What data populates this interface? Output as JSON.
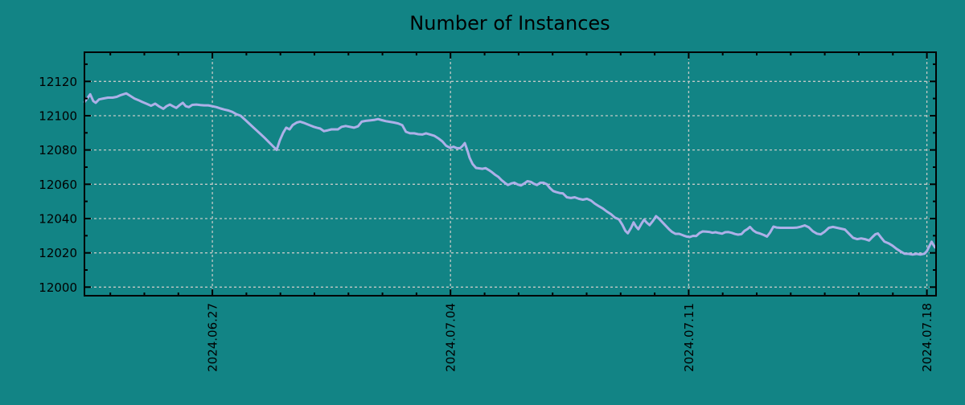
{
  "chart_data": {
    "type": "line",
    "title": "Number of Instances",
    "x_unit": "days relative to 2024-06-27",
    "x_range": [
      -3.76,
      21.27
    ],
    "y_range": [
      11995,
      12137
    ],
    "x_ticks": [
      {
        "t": 0,
        "label": "2024.06.27"
      },
      {
        "t": 7,
        "label": "2024.07.04"
      },
      {
        "t": 14,
        "label": "2024.07.11"
      },
      {
        "t": 21,
        "label": "2024.07.18"
      }
    ],
    "x_minor_ticks": [
      -3,
      -2,
      -1,
      1,
      2,
      3,
      4,
      5,
      6,
      8,
      9,
      10,
      11,
      12,
      13,
      15,
      16,
      17,
      18,
      19,
      20
    ],
    "y_ticks": [
      12000,
      12020,
      12040,
      12060,
      12080,
      12100,
      12120
    ],
    "y_minor_ticks": [
      12010,
      12030,
      12050,
      12070,
      12090,
      12110,
      12130
    ],
    "grid": {
      "on": true,
      "style": "dashed"
    },
    "legend": "none",
    "colors": {
      "background": "#128485",
      "line": "#adb0e8",
      "grid": "#c2c9c6",
      "axis": "#000000",
      "text": "#000000"
    },
    "line_width": 3,
    "points": [
      [
        -3.76,
        12108
      ],
      [
        -3.66,
        12110.5
      ],
      [
        -3.59,
        12112.5
      ],
      [
        -3.5,
        12108.5
      ],
      [
        -3.43,
        12107.5
      ],
      [
        -3.33,
        12109.5
      ],
      [
        -3.21,
        12110
      ],
      [
        -3.07,
        12110.5
      ],
      [
        -2.93,
        12110.5
      ],
      [
        -2.81,
        12111
      ],
      [
        -2.69,
        12112
      ],
      [
        -2.53,
        12113
      ],
      [
        -2.41,
        12111.5
      ],
      [
        -2.29,
        12110
      ],
      [
        -2.17,
        12109
      ],
      [
        -2.06,
        12108
      ],
      [
        -1.94,
        12107
      ],
      [
        -1.8,
        12105.8
      ],
      [
        -1.68,
        12107
      ],
      [
        -1.56,
        12105.3
      ],
      [
        -1.44,
        12104
      ],
      [
        -1.35,
        12105.5
      ],
      [
        -1.25,
        12106.5
      ],
      [
        -1.16,
        12105.5
      ],
      [
        -1.06,
        12104.5
      ],
      [
        -0.97,
        12106
      ],
      [
        -0.87,
        12107.5
      ],
      [
        -0.78,
        12105.5
      ],
      [
        -0.69,
        12105
      ],
      [
        -0.59,
        12106.3
      ],
      [
        -0.47,
        12106.5
      ],
      [
        -0.35,
        12106.2
      ],
      [
        -0.24,
        12106
      ],
      [
        -0.12,
        12106
      ],
      [
        0,
        12105.5
      ],
      [
        0.12,
        12105
      ],
      [
        0.24,
        12104.2
      ],
      [
        0.35,
        12103.6
      ],
      [
        0.47,
        12103
      ],
      [
        0.59,
        12102.2
      ],
      [
        0.71,
        12100.8
      ],
      [
        0.83,
        12100
      ],
      [
        0.94,
        12098
      ],
      [
        1.06,
        12095.8
      ],
      [
        1.18,
        12093.6
      ],
      [
        1.3,
        12091.4
      ],
      [
        1.42,
        12089.2
      ],
      [
        1.54,
        12087
      ],
      [
        1.65,
        12084.8
      ],
      [
        1.77,
        12082.4
      ],
      [
        1.89,
        12080
      ],
      [
        1.98,
        12085.5
      ],
      [
        2.08,
        12090
      ],
      [
        2.17,
        12093
      ],
      [
        2.27,
        12092
      ],
      [
        2.36,
        12094.5
      ],
      [
        2.48,
        12096
      ],
      [
        2.58,
        12096.5
      ],
      [
        2.69,
        12095.8
      ],
      [
        2.79,
        12095
      ],
      [
        2.88,
        12094.3
      ],
      [
        2.98,
        12093.5
      ],
      [
        3.07,
        12093
      ],
      [
        3.17,
        12092.5
      ],
      [
        3.28,
        12091
      ],
      [
        3.4,
        12091.5
      ],
      [
        3.5,
        12092
      ],
      [
        3.59,
        12092
      ],
      [
        3.69,
        12092
      ],
      [
        3.8,
        12093.5
      ],
      [
        3.92,
        12094
      ],
      [
        4.04,
        12093.5
      ],
      [
        4.16,
        12093
      ],
      [
        4.28,
        12093.8
      ],
      [
        4.39,
        12096.5
      ],
      [
        4.51,
        12097
      ],
      [
        4.63,
        12097.2
      ],
      [
        4.75,
        12097.5
      ],
      [
        4.87,
        12098
      ],
      [
        4.98,
        12097.4
      ],
      [
        5.1,
        12096.8
      ],
      [
        5.22,
        12096.4
      ],
      [
        5.34,
        12096
      ],
      [
        5.46,
        12095.5
      ],
      [
        5.58,
        12094.5
      ],
      [
        5.69,
        12090.6
      ],
      [
        5.81,
        12089.7
      ],
      [
        5.93,
        12089.7
      ],
      [
        6.05,
        12089.2
      ],
      [
        6.17,
        12089
      ],
      [
        6.28,
        12089.7
      ],
      [
        6.4,
        12089
      ],
      [
        6.52,
        12088.3
      ],
      [
        6.64,
        12086.8
      ],
      [
        6.76,
        12085
      ],
      [
        6.87,
        12082.5
      ],
      [
        6.99,
        12081.2
      ],
      [
        7.09,
        12081.9
      ],
      [
        7.18,
        12081.1
      ],
      [
        7.28,
        12081
      ],
      [
        7.35,
        12082.3
      ],
      [
        7.42,
        12084
      ],
      [
        7.49,
        12080
      ],
      [
        7.56,
        12075.5
      ],
      [
        7.65,
        12071.8
      ],
      [
        7.75,
        12069.5
      ],
      [
        7.84,
        12069.3
      ],
      [
        7.94,
        12069
      ],
      [
        8.03,
        12069.4
      ],
      [
        8.13,
        12068.2
      ],
      [
        8.22,
        12067
      ],
      [
        8.32,
        12065.4
      ],
      [
        8.41,
        12064.2
      ],
      [
        8.5,
        12062.4
      ],
      [
        8.6,
        12060.8
      ],
      [
        8.69,
        12059.6
      ],
      [
        8.79,
        12060.5
      ],
      [
        8.88,
        12060.9
      ],
      [
        8.98,
        12059.8
      ],
      [
        9.07,
        12059.3
      ],
      [
        9.17,
        12060.5
      ],
      [
        9.26,
        12061.8
      ],
      [
        9.36,
        12061.4
      ],
      [
        9.45,
        12060.3
      ],
      [
        9.54,
        12059.6
      ],
      [
        9.64,
        12060.9
      ],
      [
        9.73,
        12060.9
      ],
      [
        9.83,
        12060
      ],
      [
        9.92,
        12057.8
      ],
      [
        10.02,
        12056
      ],
      [
        10.11,
        12055.4
      ],
      [
        10.21,
        12054.9
      ],
      [
        10.3,
        12054.7
      ],
      [
        10.42,
        12052.4
      ],
      [
        10.54,
        12052
      ],
      [
        10.65,
        12052.4
      ],
      [
        10.77,
        12051.5
      ],
      [
        10.89,
        12051
      ],
      [
        11.01,
        12051.5
      ],
      [
        11.13,
        12050.5
      ],
      [
        11.24,
        12048.7
      ],
      [
        11.36,
        12047.2
      ],
      [
        11.48,
        12045.8
      ],
      [
        11.6,
        12044
      ],
      [
        11.72,
        12042.5
      ],
      [
        11.83,
        12040.6
      ],
      [
        11.95,
        12039.5
      ],
      [
        12.05,
        12036.4
      ],
      [
        12.14,
        12032.8
      ],
      [
        12.21,
        12031.4
      ],
      [
        12.31,
        12034.7
      ],
      [
        12.38,
        12037.8
      ],
      [
        12.45,
        12035.4
      ],
      [
        12.52,
        12033.8
      ],
      [
        12.61,
        12036.9
      ],
      [
        12.69,
        12039.4
      ],
      [
        12.76,
        12037.8
      ],
      [
        12.85,
        12036.2
      ],
      [
        12.95,
        12038.7
      ],
      [
        13.04,
        12041.4
      ],
      [
        13.13,
        12039.9
      ],
      [
        13.23,
        12037.8
      ],
      [
        13.32,
        12035.9
      ],
      [
        13.42,
        12033.8
      ],
      [
        13.51,
        12032.2
      ],
      [
        13.61,
        12031.1
      ],
      [
        13.72,
        12031.1
      ],
      [
        13.84,
        12030.2
      ],
      [
        13.94,
        12029.5
      ],
      [
        14.03,
        12029.2
      ],
      [
        14.13,
        12029.9
      ],
      [
        14.22,
        12029.8
      ],
      [
        14.32,
        12031.6
      ],
      [
        14.41,
        12032.5
      ],
      [
        14.51,
        12032.4
      ],
      [
        14.6,
        12032.2
      ],
      [
        14.7,
        12031.7
      ],
      [
        14.79,
        12032
      ],
      [
        14.88,
        12031.6
      ],
      [
        14.98,
        12031.2
      ],
      [
        15.07,
        12032
      ],
      [
        15.17,
        12032.1
      ],
      [
        15.26,
        12031.7
      ],
      [
        15.36,
        12031
      ],
      [
        15.45,
        12030.6
      ],
      [
        15.55,
        12030.9
      ],
      [
        15.64,
        12032.8
      ],
      [
        15.73,
        12033.9
      ],
      [
        15.8,
        12035.1
      ],
      [
        15.9,
        12033
      ],
      [
        15.99,
        12031.9
      ],
      [
        16.09,
        12031.3
      ],
      [
        16.21,
        12030.4
      ],
      [
        16.3,
        12029.5
      ],
      [
        16.39,
        12031.8
      ],
      [
        16.49,
        12035.3
      ],
      [
        16.58,
        12034.8
      ],
      [
        16.7,
        12034.6
      ],
      [
        16.82,
        12034.6
      ],
      [
        16.94,
        12034.6
      ],
      [
        17.06,
        12034.6
      ],
      [
        17.17,
        12034.7
      ],
      [
        17.29,
        12035.2
      ],
      [
        17.41,
        12036
      ],
      [
        17.53,
        12034.9
      ],
      [
        17.65,
        12032.6
      ],
      [
        17.77,
        12031.2
      ],
      [
        17.88,
        12030.8
      ],
      [
        18,
        12032.4
      ],
      [
        18.12,
        12034.6
      ],
      [
        18.24,
        12035.1
      ],
      [
        18.36,
        12034.6
      ],
      [
        18.48,
        12034.1
      ],
      [
        18.59,
        12033.6
      ],
      [
        18.71,
        12031.2
      ],
      [
        18.83,
        12028.8
      ],
      [
        18.95,
        12028
      ],
      [
        19.07,
        12028.4
      ],
      [
        19.18,
        12028
      ],
      [
        19.3,
        12027.2
      ],
      [
        19.4,
        12029.2
      ],
      [
        19.49,
        12030.9
      ],
      [
        19.56,
        12031.3
      ],
      [
        19.66,
        12028.8
      ],
      [
        19.75,
        12026.6
      ],
      [
        19.87,
        12025.6
      ],
      [
        19.99,
        12024.2
      ],
      [
        20.11,
        12022.3
      ],
      [
        20.22,
        12020.9
      ],
      [
        20.34,
        12019.5
      ],
      [
        20.46,
        12019.4
      ],
      [
        20.58,
        12019
      ],
      [
        20.7,
        12019.4
      ],
      [
        20.81,
        12019
      ],
      [
        20.93,
        12019.5
      ],
      [
        21,
        12021
      ],
      [
        21.1,
        12025
      ],
      [
        21.14,
        12026.5
      ],
      [
        21.19,
        12024.7
      ],
      [
        21.24,
        12023.2
      ]
    ]
  }
}
